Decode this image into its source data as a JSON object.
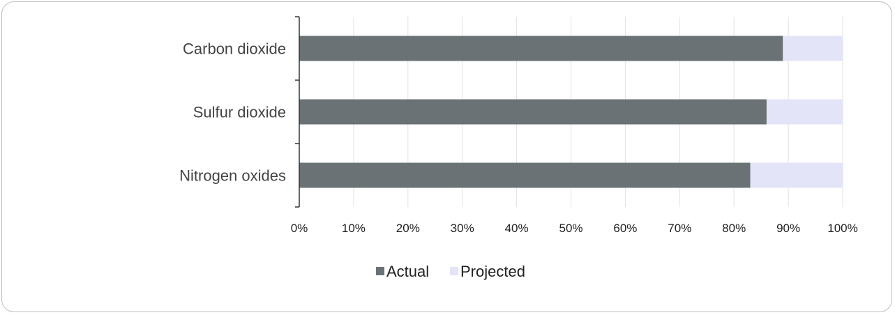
{
  "chart_data": {
    "type": "bar",
    "orientation": "horizontal",
    "stacked": true,
    "title": "",
    "xlabel": "",
    "ylabel": "",
    "categories": [
      "Carbon dioxide",
      "Sulfur dioxide",
      "Nitrogen oxides"
    ],
    "series": [
      {
        "name": "Actual",
        "color": "#6a7275",
        "values": [
          89,
          86,
          83
        ]
      },
      {
        "name": "Projected",
        "color": "#e4e4f8",
        "values": [
          11,
          14,
          17
        ]
      }
    ],
    "xlim": [
      0,
      100
    ],
    "x_ticks": [
      "0%",
      "10%",
      "20%",
      "30%",
      "40%",
      "50%",
      "60%",
      "70%",
      "80%",
      "90%",
      "100%"
    ],
    "grid": "vertical",
    "legend": "bottom"
  }
}
